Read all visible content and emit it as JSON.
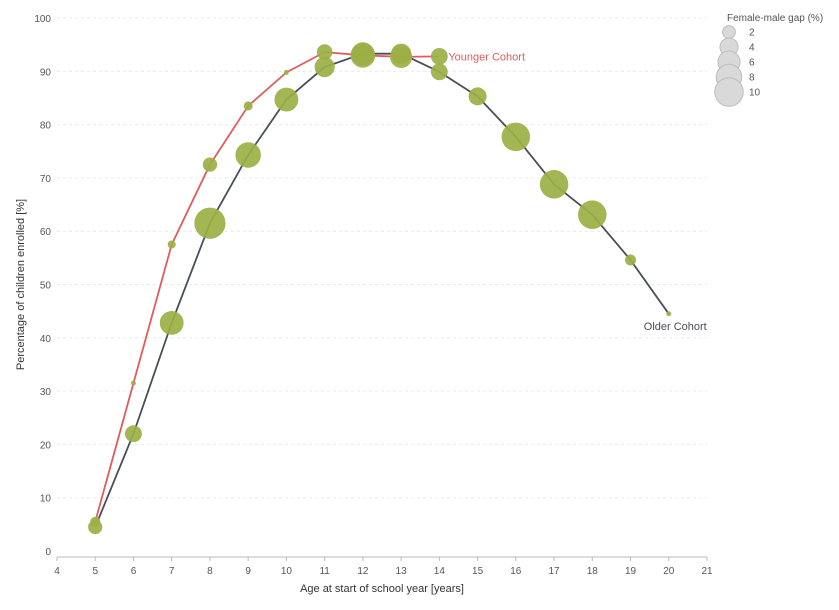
{
  "chart_data": {
    "type": "scatter",
    "title": "",
    "xlabel": "Age at start of school year [years]",
    "ylabel": "Percentage of children enrolled [%]",
    "xlim": [
      4,
      21
    ],
    "ylim": [
      0,
      100
    ],
    "xticks": [
      4,
      5,
      6,
      7,
      8,
      9,
      10,
      11,
      12,
      13,
      14,
      15,
      16,
      17,
      18,
      19,
      20,
      21
    ],
    "yticks": [
      0,
      10,
      20,
      30,
      40,
      50,
      60,
      70,
      80,
      90,
      100
    ],
    "grid": true,
    "series": [
      {
        "name": "Younger Cohort",
        "color": "#e05c5c",
        "x": [
          5,
          6,
          7,
          8,
          9,
          10,
          11,
          12,
          13,
          14
        ],
        "y": [
          5.5,
          31.5,
          57.5,
          72.5,
          83.5,
          89.8,
          93.6,
          93.0,
          92.7,
          92.8
        ],
        "gap": [
          1.2,
          0.3,
          0.8,
          2.5,
          1.0,
          0.3,
          3.0,
          7.5,
          6.0,
          3.5
        ]
      },
      {
        "name": "Older Cohort",
        "color": "#4a4e58",
        "x": [
          5,
          6,
          7,
          8,
          9,
          10,
          11,
          12,
          13,
          14,
          15,
          16,
          17,
          18,
          19,
          20
        ],
        "y": [
          4.5,
          22.0,
          42.8,
          61.5,
          74.3,
          84.7,
          90.8,
          93.3,
          93.3,
          89.9,
          85.3,
          77.7,
          68.8,
          63.1,
          54.6,
          44.5
        ],
        "gap": [
          2.5,
          3.5,
          7.0,
          12.0,
          8.0,
          7.0,
          5.0,
          6.5,
          5.0,
          3.5,
          4.0,
          10.0,
          10.0,
          10.0,
          1.5,
          0.3
        ]
      }
    ],
    "marker_color": "#9bb045",
    "legend": {
      "title": "Female-male gap (%)",
      "placement": "top-right",
      "sizes": [
        2,
        4,
        6,
        8,
        10
      ],
      "labels": [
        "2",
        "4",
        "6",
        "8",
        "10"
      ]
    }
  }
}
